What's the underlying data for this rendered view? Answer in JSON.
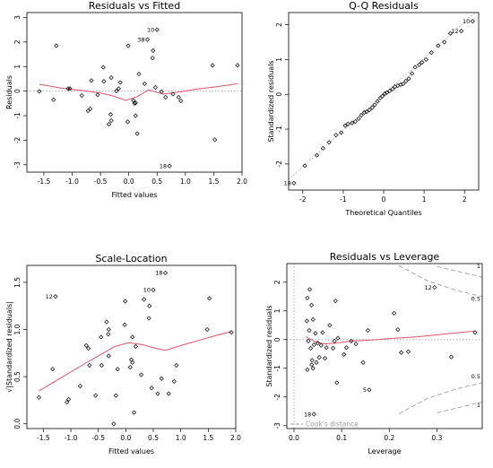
{
  "colors": {
    "smooth": "#df536b",
    "reference": "#9e9e9e",
    "points": "#000000"
  },
  "chart_data": [
    {
      "type": "scatter",
      "title": "Residuals vs Fitted",
      "xlabel": "Fitted values",
      "ylabel": "Residuals",
      "xlim": [
        -1.8,
        2.0
      ],
      "ylim": [
        -3.3,
        3.2
      ],
      "xticks": [
        -1.5,
        -1.0,
        -0.5,
        0.0,
        0.5,
        1.0,
        1.5,
        2.0
      ],
      "yticks": [
        -3,
        -2,
        -1,
        0,
        1,
        2,
        3
      ],
      "xtick_labels": [
        "-1.5",
        "-1.0",
        "-0.5",
        "0.0",
        "0.5",
        "1.0",
        "1.5",
        "2.0"
      ],
      "ytick_labels": [
        "-3",
        "-2",
        "-1",
        "0",
        "1",
        "2",
        "3"
      ],
      "points": [
        [
          -1.58,
          -0.01
        ],
        [
          -1.33,
          -0.35
        ],
        [
          -1.28,
          1.85
        ],
        [
          -1.07,
          0.1
        ],
        [
          -1.04,
          0.1
        ],
        [
          -0.83,
          -0.18
        ],
        [
          -0.72,
          -0.8
        ],
        [
          -0.68,
          -0.72
        ],
        [
          -0.66,
          0.43
        ],
        [
          -0.55,
          -0.15
        ],
        [
          -0.45,
          0.97
        ],
        [
          -0.44,
          0.4
        ],
        [
          -0.35,
          -1.35
        ],
        [
          -0.32,
          -0.95
        ],
        [
          -0.31,
          -1.2
        ],
        [
          -0.31,
          0.55
        ],
        [
          -0.22,
          0.0
        ],
        [
          -0.18,
          0.1
        ],
        [
          -0.15,
          0.35
        ],
        [
          -0.02,
          -1.25
        ],
        [
          -0.01,
          1.85
        ],
        [
          0.08,
          -0.38
        ],
        [
          0.1,
          -0.5
        ],
        [
          0.12,
          -0.48
        ],
        [
          0.18,
          0.7
        ],
        [
          0.12,
          -1.0
        ],
        [
          0.15,
          -1.73
        ],
        [
          0.28,
          0.3
        ],
        [
          0.33,
          2.1
        ],
        [
          0.42,
          1.35
        ],
        [
          0.43,
          1.65
        ],
        [
          0.47,
          0.15
        ],
        [
          0.5,
          2.5
        ],
        [
          0.58,
          -0.02
        ],
        [
          0.65,
          -0.25
        ],
        [
          0.72,
          -3.05
        ],
        [
          0.78,
          -0.12
        ],
        [
          0.88,
          -0.25
        ],
        [
          0.92,
          -0.4
        ],
        [
          1.48,
          1.05
        ],
        [
          1.52,
          -1.98
        ],
        [
          1.92,
          1.05
        ]
      ],
      "annotations": [
        {
          "text": "38",
          "x": 0.33,
          "y": 2.1
        },
        {
          "text": "10",
          "x": 0.5,
          "y": 2.5
        },
        {
          "text": "18",
          "x": 0.72,
          "y": -3.05
        }
      ],
      "reference_line": {
        "y": 0
      },
      "smooth": [
        [
          -1.58,
          0.28
        ],
        [
          -1.2,
          0.12
        ],
        [
          -0.8,
          0.02
        ],
        [
          -0.5,
          -0.08
        ],
        [
          -0.3,
          -0.18
        ],
        [
          -0.05,
          -0.38
        ],
        [
          0.15,
          -0.22
        ],
        [
          0.35,
          0.05
        ],
        [
          0.6,
          -0.12
        ],
        [
          0.85,
          -0.05
        ],
        [
          1.2,
          0.08
        ],
        [
          1.55,
          0.18
        ],
        [
          1.92,
          0.3
        ]
      ]
    },
    {
      "type": "scatter",
      "title": "Q-Q Residuals",
      "xlabel": "Theoretical Quantiles",
      "ylabel": "Standardized residuals",
      "xlim": [
        -2.35,
        2.35
      ],
      "ylim": [
        -2.75,
        2.35
      ],
      "xticks": [
        -2,
        -1,
        0,
        1,
        2
      ],
      "yticks": [
        -2,
        -1,
        0,
        1,
        2
      ],
      "xtick_labels": [
        "-2",
        "-1",
        "0",
        "1",
        "2"
      ],
      "ytick_labels": [
        "-2",
        "-1",
        "0",
        "1",
        "2"
      ],
      "points": [
        [
          -2.22,
          -2.55
        ],
        [
          -1.95,
          -2.05
        ],
        [
          -1.65,
          -1.75
        ],
        [
          -1.5,
          -1.55
        ],
        [
          -1.35,
          -1.38
        ],
        [
          -1.18,
          -1.17
        ],
        [
          -1.05,
          -1.1
        ],
        [
          -0.95,
          -0.9
        ],
        [
          -0.88,
          -0.85
        ],
        [
          -0.78,
          -0.82
        ],
        [
          -0.7,
          -0.78
        ],
        [
          -0.62,
          -0.7
        ],
        [
          -0.55,
          -0.6
        ],
        [
          -0.48,
          -0.52
        ],
        [
          -0.42,
          -0.5
        ],
        [
          -0.35,
          -0.45
        ],
        [
          -0.28,
          -0.38
        ],
        [
          -0.22,
          -0.3
        ],
        [
          -0.15,
          -0.2
        ],
        [
          -0.08,
          -0.1
        ],
        [
          -0.03,
          -0.05
        ],
        [
          0.03,
          0.02
        ],
        [
          0.08,
          0.05
        ],
        [
          0.15,
          0.1
        ],
        [
          0.22,
          0.15
        ],
        [
          0.28,
          0.22
        ],
        [
          0.35,
          0.25
        ],
        [
          0.42,
          0.28
        ],
        [
          0.48,
          0.3
        ],
        [
          0.55,
          0.38
        ],
        [
          0.62,
          0.45
        ],
        [
          0.7,
          0.6
        ],
        [
          0.78,
          0.78
        ],
        [
          0.88,
          0.85
        ],
        [
          0.95,
          0.92
        ],
        [
          1.05,
          1.0
        ],
        [
          1.18,
          1.2
        ],
        [
          1.35,
          1.4
        ],
        [
          1.5,
          1.5
        ],
        [
          1.65,
          1.75
        ],
        [
          1.92,
          1.82
        ],
        [
          2.2,
          2.1
        ]
      ],
      "annotations": [
        {
          "text": "18",
          "x": -2.22,
          "y": -2.55
        },
        {
          "text": "12",
          "x": 1.92,
          "y": 1.82
        },
        {
          "text": "10",
          "x": 2.2,
          "y": 2.1
        }
      ],
      "reference_line": {
        "intercept": 0,
        "slope": 1.04
      }
    },
    {
      "type": "scatter",
      "title": "Scale-Location",
      "xlabel": "Fitted values",
      "ylabel": "√|Standardized residuals|",
      "xlim": [
        -1.8,
        2.0
      ],
      "ylim": [
        -0.05,
        1.68
      ],
      "xticks": [
        -1.5,
        -1.0,
        -0.5,
        0.0,
        0.5,
        1.0,
        1.5,
        2.0
      ],
      "yticks": [
        0.0,
        0.5,
        1.0,
        1.5
      ],
      "xtick_labels": [
        "-1.5",
        "-1.0",
        "-0.5",
        "0.0",
        "0.5",
        "1.0",
        "1.5",
        "2.0"
      ],
      "ytick_labels": [
        "0.0",
        "0.5",
        "1.0",
        "1.5"
      ],
      "points": [
        [
          -1.58,
          0.28
        ],
        [
          -1.33,
          0.58
        ],
        [
          -1.28,
          1.35
        ],
        [
          -1.07,
          0.23
        ],
        [
          -1.04,
          0.26
        ],
        [
          -0.83,
          0.4
        ],
        [
          -0.72,
          0.83
        ],
        [
          -0.68,
          0.8
        ],
        [
          -0.66,
          0.62
        ],
        [
          -0.55,
          0.3
        ],
        [
          -0.45,
          0.92
        ],
        [
          -0.44,
          0.62
        ],
        [
          -0.35,
          1.08
        ],
        [
          -0.32,
          0.95
        ],
        [
          -0.31,
          1.0
        ],
        [
          -0.31,
          0.72
        ],
        [
          -0.22,
          0.0
        ],
        [
          -0.18,
          0.3
        ],
        [
          -0.15,
          0.58
        ],
        [
          -0.02,
          1.05
        ],
        [
          -0.01,
          1.3
        ],
        [
          0.08,
          0.6
        ],
        [
          0.1,
          0.68
        ],
        [
          0.12,
          0.65
        ],
        [
          0.18,
          0.82
        ],
        [
          0.12,
          0.92
        ],
        [
          0.15,
          0.12
        ],
        [
          0.28,
          0.52
        ],
        [
          0.33,
          1.32
        ],
        [
          0.42,
          1.12
        ],
        [
          0.43,
          1.25
        ],
        [
          0.47,
          0.38
        ],
        [
          0.5,
          1.42
        ],
        [
          0.58,
          0.32
        ],
        [
          0.65,
          0.48
        ],
        [
          0.72,
          1.6
        ],
        [
          0.78,
          0.32
        ],
        [
          0.88,
          0.45
        ],
        [
          0.92,
          0.62
        ],
        [
          1.48,
          1.0
        ],
        [
          1.52,
          1.33
        ],
        [
          1.92,
          0.97
        ]
      ],
      "annotations": [
        {
          "text": "12",
          "x": -1.28,
          "y": 1.35
        },
        {
          "text": "10",
          "x": 0.5,
          "y": 1.42
        },
        {
          "text": "18",
          "x": 0.72,
          "y": 1.6
        }
      ],
      "smooth": [
        [
          -1.58,
          0.35
        ],
        [
          -1.2,
          0.48
        ],
        [
          -0.8,
          0.62
        ],
        [
          -0.5,
          0.72
        ],
        [
          -0.2,
          0.82
        ],
        [
          0.05,
          0.86
        ],
        [
          0.3,
          0.84
        ],
        [
          0.55,
          0.8
        ],
        [
          0.72,
          0.78
        ],
        [
          1.0,
          0.83
        ],
        [
          1.3,
          0.88
        ],
        [
          1.6,
          0.93
        ],
        [
          1.92,
          0.98
        ]
      ]
    },
    {
      "type": "scatter",
      "title": "Residuals vs Leverage",
      "xlabel": "Leverage",
      "ylabel": "Standardized residuals",
      "xlim": [
        -0.015,
        0.395
      ],
      "ylim": [
        -3.1,
        2.65
      ],
      "xticks": [
        0.0,
        0.1,
        0.2,
        0.3
      ],
      "yticks": [
        -3,
        -2,
        -1,
        0,
        1,
        2
      ],
      "xtick_labels": [
        "0.0",
        "0.1",
        "0.2",
        "0.3"
      ],
      "ytick_labels": [
        "-3",
        "-2",
        "-1",
        "0",
        "1",
        "2"
      ],
      "points": [
        [
          0.028,
          1.45
        ],
        [
          0.033,
          1.75
        ],
        [
          0.037,
          1.2
        ],
        [
          0.027,
          0.65
        ],
        [
          0.032,
          0.32
        ],
        [
          0.04,
          0.7
        ],
        [
          0.045,
          0.22
        ],
        [
          0.03,
          -0.05
        ],
        [
          0.035,
          -0.3
        ],
        [
          0.042,
          -0.18
        ],
        [
          0.05,
          -0.12
        ],
        [
          0.057,
          -0.2
        ],
        [
          0.053,
          -0.62
        ],
        [
          0.047,
          -0.8
        ],
        [
          0.038,
          -0.72
        ],
        [
          0.028,
          -1.05
        ],
        [
          0.037,
          -0.88
        ],
        [
          0.04,
          -1.0
        ],
        [
          0.06,
          0.25
        ],
        [
          0.065,
          -0.65
        ],
        [
          0.068,
          -0.28
        ],
        [
          0.075,
          0.5
        ],
        [
          0.082,
          -0.3
        ],
        [
          0.087,
          1.35
        ],
        [
          0.085,
          -0.05
        ],
        [
          0.09,
          -1.5
        ],
        [
          0.092,
          0.05
        ],
        [
          0.105,
          -0.52
        ],
        [
          0.11,
          -0.28
        ],
        [
          0.12,
          -0.05
        ],
        [
          0.13,
          -0.15
        ],
        [
          0.145,
          -0.8
        ],
        [
          0.155,
          0.32
        ],
        [
          0.158,
          -1.75
        ],
        [
          0.21,
          0.92
        ],
        [
          0.218,
          0.35
        ],
        [
          0.225,
          -0.45
        ],
        [
          0.24,
          -0.42
        ],
        [
          0.295,
          1.82
        ],
        [
          0.33,
          -0.6
        ],
        [
          0.38,
          0.25
        ],
        [
          0.042,
          -2.6
        ]
      ],
      "annotations": [
        {
          "text": "12",
          "x": 0.295,
          "y": 1.82
        },
        {
          "text": "5",
          "x": 0.158,
          "y": -1.75
        },
        {
          "text": "18",
          "x": 0.042,
          "y": -2.6
        }
      ],
      "cooks_distance": {
        "legend": "Cook's distance",
        "contour_labels": [
          "1",
          "0.5",
          "0.5",
          "1"
        ],
        "upper_1": [
          [
            0.3,
            2.55
          ],
          [
            0.35,
            2.35
          ],
          [
            0.395,
            2.18
          ]
        ],
        "upper_05": [
          [
            0.22,
            2.58
          ],
          [
            0.28,
            2.05
          ],
          [
            0.34,
            1.72
          ],
          [
            0.395,
            1.5
          ]
        ],
        "lower_05": [
          [
            0.22,
            -2.58
          ],
          [
            0.28,
            -2.05
          ],
          [
            0.34,
            -1.72
          ],
          [
            0.395,
            -1.5
          ]
        ],
        "lower_1": [
          [
            0.3,
            -2.55
          ],
          [
            0.35,
            -2.35
          ],
          [
            0.395,
            -2.18
          ]
        ]
      },
      "reference_line": {
        "y": 0
      },
      "smooth": [
        [
          0.025,
          0.1
        ],
        [
          0.045,
          -0.08
        ],
        [
          0.065,
          -0.15
        ],
        [
          0.09,
          -0.12
        ],
        [
          0.12,
          -0.05
        ],
        [
          0.16,
          -0.02
        ],
        [
          0.21,
          0.05
        ],
        [
          0.26,
          0.1
        ],
        [
          0.32,
          0.2
        ],
        [
          0.38,
          0.3
        ]
      ]
    }
  ]
}
